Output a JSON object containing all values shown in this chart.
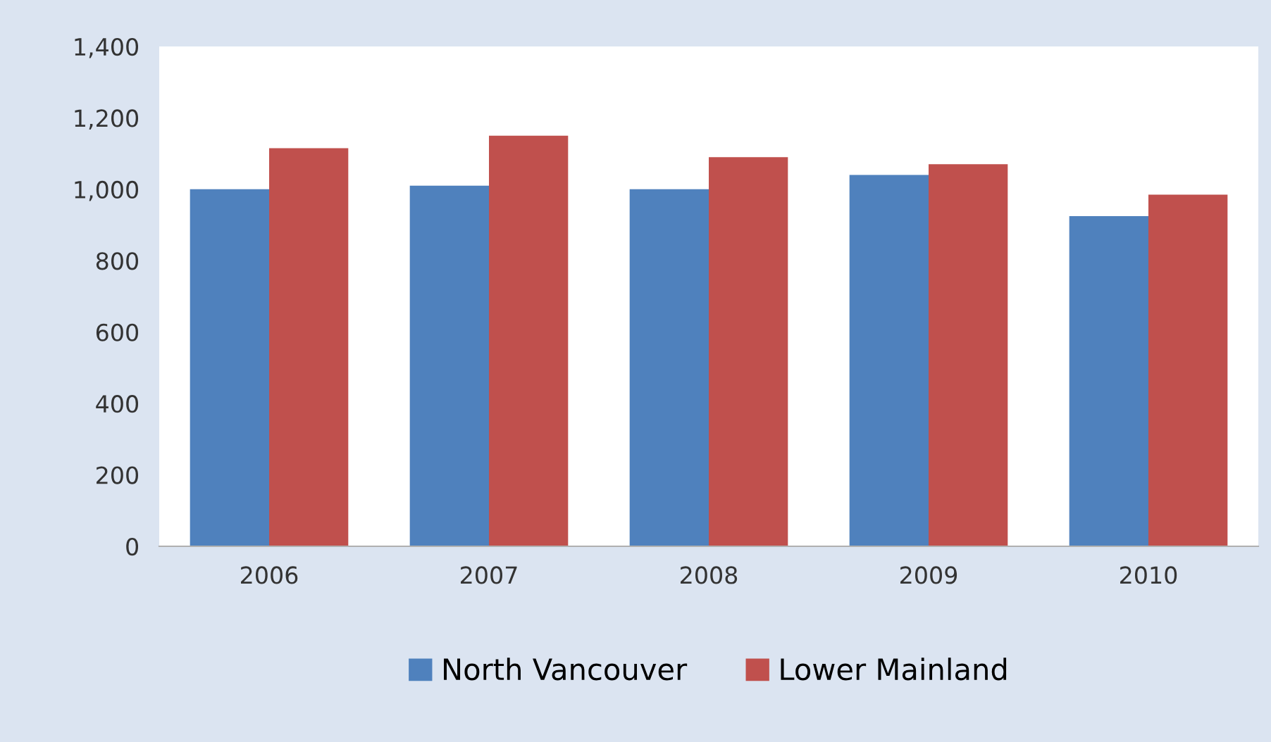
{
  "chart_data": {
    "type": "bar",
    "categories": [
      "2006",
      "2007",
      "2008",
      "2009",
      "2010"
    ],
    "series": [
      {
        "name": "North Vancouver",
        "color": "#4f81bd",
        "values": [
          1000,
          1010,
          1000,
          1040,
          925
        ]
      },
      {
        "name": "Lower Mainland",
        "color": "#c0504d",
        "values": [
          1115,
          1150,
          1090,
          1070,
          985
        ]
      }
    ],
    "ylim": [
      0,
      1400
    ],
    "yticks": [
      {
        "value": 0,
        "label": "0"
      },
      {
        "value": 200,
        "label": "200"
      },
      {
        "value": 400,
        "label": "400"
      },
      {
        "value": 600,
        "label": "600"
      },
      {
        "value": 800,
        "label": "800"
      },
      {
        "value": 1000,
        "label": "1,000"
      },
      {
        "value": 1200,
        "label": "1,200"
      },
      {
        "value": 1400,
        "label": "1,400"
      }
    ],
    "grid": false,
    "legend": "bottom"
  }
}
